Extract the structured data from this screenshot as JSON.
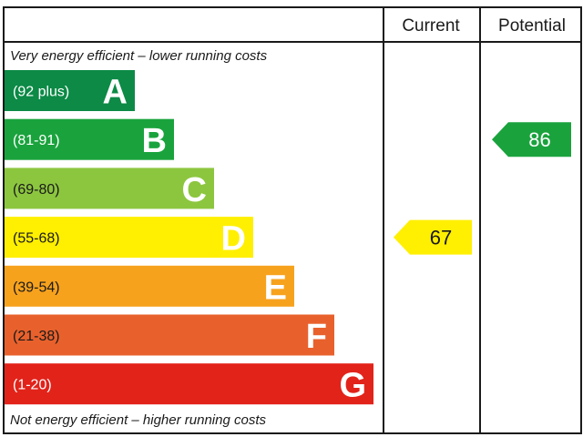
{
  "headers": {
    "current": "Current",
    "potential": "Potential"
  },
  "top_note": "Very energy efficient – lower running costs",
  "bottom_note": "Not energy efficient – higher running costs",
  "chart_data": {
    "type": "bar",
    "categories": [
      "A",
      "B",
      "C",
      "D",
      "E",
      "F",
      "G"
    ],
    "ranges": [
      "(92 plus)",
      "(81-91)",
      "(69-80)",
      "(55-68)",
      "(39-54)",
      "(21-38)",
      "(1-20)"
    ],
    "colors": [
      "#008054",
      "#19b459",
      "#8dce46",
      "#ffd500",
      "#fcaa65",
      "#ef8023",
      "#e9153b"
    ],
    "band_colors_actual": [
      "#0c8a46",
      "#1aa33d",
      "#8cc63f",
      "#ffef00",
      "#f7a21d",
      "#e8612c",
      "#e2231a"
    ],
    "range_text_colors": [
      "#ffffff",
      "#ffffff",
      "#1a1a1a",
      "#1a1a1a",
      "#1a1a1a",
      "#1a1a1a",
      "#ffffff"
    ],
    "current": {
      "value": 67,
      "band": "D",
      "color": "#ffef00",
      "text_color": "#1a1a1a"
    },
    "potential": {
      "value": 86,
      "band": "B",
      "color": "#1aa33d",
      "text_color": "#ffffff"
    }
  }
}
